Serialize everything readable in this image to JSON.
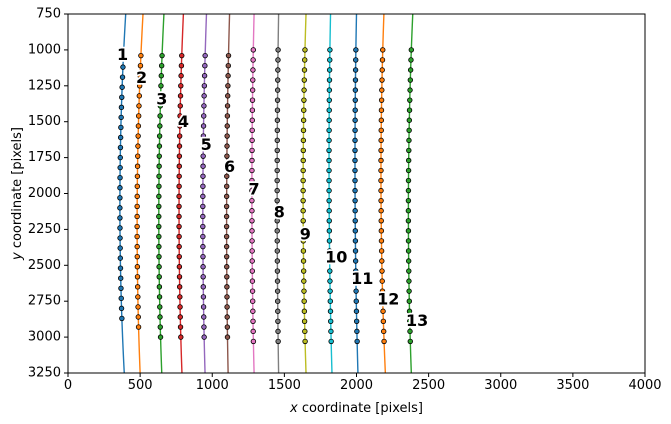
{
  "chart_data": {
    "type": "scatter",
    "title": "",
    "xlabel": {
      "prefix": "",
      "var": "x",
      "suffix": " coordinate [pixels]"
    },
    "ylabel": {
      "prefix": "",
      "var": "y",
      "suffix": " coordinate [pixels]"
    },
    "xlim": [
      0,
      4000
    ],
    "ylim": [
      3250,
      750
    ],
    "y_inverted": true,
    "grid": false,
    "legend": "none",
    "xticks": [
      0,
      500,
      1000,
      1500,
      2000,
      2500,
      3000,
      3500,
      4000
    ],
    "yticks": [
      750,
      1000,
      1250,
      1500,
      1750,
      2000,
      2250,
      2500,
      2750,
      3000,
      3250
    ],
    "point_y_range": [
      1000,
      3050
    ],
    "point_spacing_y": 70,
    "series": [
      {
        "label": "1",
        "color": "#1f77b4",
        "x_top": 400,
        "x_mid": 360,
        "x_bottom": 390,
        "point_y_start": 1050,
        "point_y_end": 2930,
        "label_pos": [
          378,
          1040
        ]
      },
      {
        "label": "2",
        "color": "#ff7f0e",
        "x_top": 520,
        "x_mid": 480,
        "x_bottom": 500,
        "point_y_start": 1040,
        "point_y_end": 2970,
        "label_pos": [
          510,
          1200
        ]
      },
      {
        "label": "3",
        "color": "#2ca02c",
        "x_top": 665,
        "x_mid": 630,
        "x_bottom": 650,
        "point_y_start": 1040,
        "point_y_end": 3000,
        "label_pos": [
          650,
          1350
        ]
      },
      {
        "label": "4",
        "color": "#d62728",
        "x_top": 800,
        "x_mid": 770,
        "x_bottom": 790,
        "point_y_start": 1040,
        "point_y_end": 3000,
        "label_pos": [
          800,
          1505
        ]
      },
      {
        "label": "5",
        "color": "#9467bd",
        "x_top": 960,
        "x_mid": 935,
        "x_bottom": 950,
        "point_y_start": 1040,
        "point_y_end": 3030,
        "label_pos": [
          958,
          1665
        ]
      },
      {
        "label": "6",
        "color": "#8c564b",
        "x_top": 1120,
        "x_mid": 1100,
        "x_bottom": 1110,
        "point_y_start": 1040,
        "point_y_end": 3030,
        "label_pos": [
          1120,
          1820
        ]
      },
      {
        "label": "7",
        "color": "#e377c2",
        "x_top": 1290,
        "x_mid": 1275,
        "x_bottom": 1290,
        "point_y_start": 1000,
        "point_y_end": 3030,
        "label_pos": [
          1290,
          1975
        ]
      },
      {
        "label": "8",
        "color": "#7f7f7f",
        "x_top": 1460,
        "x_mid": 1450,
        "x_bottom": 1460,
        "point_y_start": 1000,
        "point_y_end": 3030,
        "label_pos": [
          1465,
          2135
        ]
      },
      {
        "label": "9",
        "color": "#bcbd22",
        "x_top": 1650,
        "x_mid": 1630,
        "x_bottom": 1650,
        "point_y_start": 1000,
        "point_y_end": 3030,
        "label_pos": [
          1645,
          2290
        ]
      },
      {
        "label": "10",
        "color": "#17becf",
        "x_top": 1820,
        "x_mid": 1810,
        "x_bottom": 1830,
        "point_y_start": 1000,
        "point_y_end": 3030,
        "label_pos": [
          1860,
          2450
        ]
      },
      {
        "label": "11",
        "color": "#1f77b4",
        "x_top": 2000,
        "x_mid": 1990,
        "x_bottom": 2010,
        "point_y_start": 1000,
        "point_y_end": 3030,
        "label_pos": [
          2040,
          2600
        ]
      },
      {
        "label": "12",
        "color": "#ff7f0e",
        "x_top": 2190,
        "x_mid": 2170,
        "x_bottom": 2200,
        "point_y_start": 1000,
        "point_y_end": 3030,
        "label_pos": [
          2220,
          2740
        ]
      },
      {
        "label": "13",
        "color": "#2ca02c",
        "x_top": 2390,
        "x_mid": 2360,
        "x_bottom": 2380,
        "point_y_start": 1000,
        "point_y_end": 3050,
        "label_pos": [
          2420,
          2890
        ]
      }
    ]
  }
}
